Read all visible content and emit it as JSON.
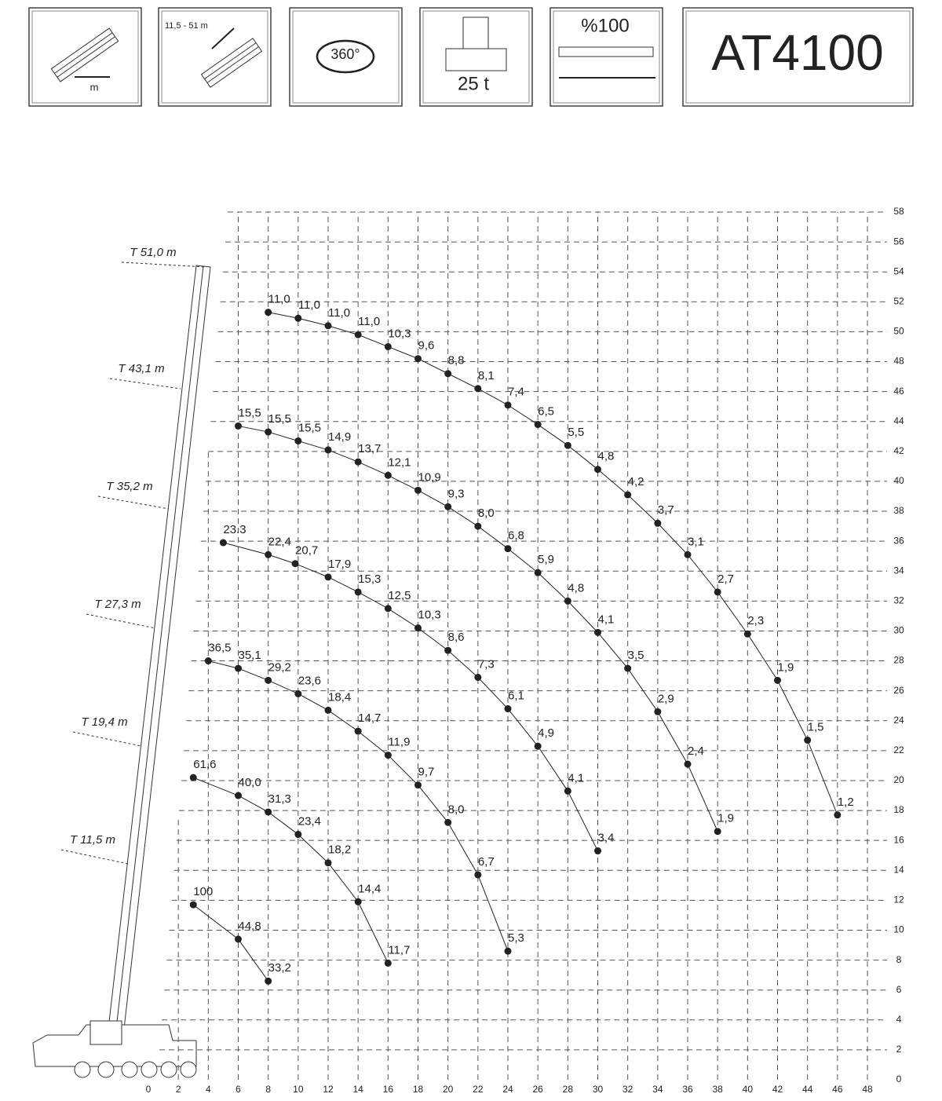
{
  "header": {
    "icons": [
      "m",
      "11,5 - 51 m",
      "360°",
      "25 t",
      "%100"
    ],
    "model": "AT4100"
  },
  "chart_data": {
    "type": "scatter",
    "xlim": [
      0,
      48
    ],
    "ylim": [
      0,
      58
    ],
    "xticks": [
      0,
      2,
      4,
      6,
      8,
      10,
      12,
      14,
      16,
      18,
      20,
      22,
      24,
      26,
      28,
      30,
      32,
      34,
      36,
      38,
      40,
      42,
      44,
      46,
      48
    ],
    "yticks": [
      0,
      2,
      4,
      6,
      8,
      10,
      12,
      14,
      16,
      18,
      20,
      22,
      24,
      26,
      28,
      30,
      32,
      34,
      36,
      38,
      40,
      42,
      44,
      46,
      48,
      50,
      52,
      54,
      56,
      58
    ],
    "grid": true,
    "color": "#222222",
    "series": [
      {
        "name": "T 51,0 m",
        "x": [
          8,
          10,
          12,
          14,
          16,
          18,
          20,
          22,
          24,
          26,
          28,
          30,
          32,
          34,
          36,
          38,
          40,
          42,
          44,
          46
        ],
        "values": [
          51.3,
          50.9,
          50.4,
          49.8,
          49.0,
          48.2,
          47.2,
          46.2,
          45.1,
          43.8,
          42.4,
          40.8,
          39.1,
          37.2,
          35.1,
          32.6,
          29.8,
          26.7,
          22.7,
          17.7
        ],
        "loads": [
          11.0,
          11.0,
          11.0,
          11.0,
          10.3,
          9.6,
          8.8,
          8.1,
          7.4,
          6.5,
          5.5,
          4.8,
          4.2,
          3.7,
          3.1,
          2.7,
          2.3,
          1.9,
          1.5,
          1.2
        ],
        "value_labels": [
          "11,0",
          "11,0",
          "11,0",
          "11,0",
          "10,3",
          "9,6",
          "8,8",
          "8,1",
          "7,4",
          "6,5",
          "5,5",
          "4,8",
          "4,2",
          "3,7",
          "3,1",
          "2,7",
          "2,3",
          "1,9",
          "1,5",
          "1,2"
        ]
      },
      {
        "name": "T 43,1 m",
        "x": [
          6,
          8,
          10,
          12,
          14,
          16,
          18,
          20,
          22,
          24,
          26,
          28,
          30,
          32,
          34,
          36,
          38
        ],
        "values": [
          43.7,
          43.3,
          42.7,
          42.1,
          41.3,
          40.4,
          39.4,
          38.3,
          37.0,
          35.5,
          33.9,
          32.0,
          29.9,
          27.5,
          24.6,
          21.1,
          16.6
        ],
        "loads": [
          15.5,
          15.5,
          15.5,
          14.9,
          13.7,
          12.1,
          10.9,
          9.3,
          8.0,
          6.8,
          5.9,
          4.8,
          4.1,
          3.5,
          2.9,
          2.4,
          1.9
        ],
        "value_labels": [
          "15,5",
          "15,5",
          "15,5",
          "14,9",
          "13,7",
          "12,1",
          "10,9",
          "9,3",
          "8,0",
          "6,8",
          "5,9",
          "4,8",
          "4,1",
          "3,5",
          "2,9",
          "2,4",
          "1,9"
        ]
      },
      {
        "name": "T 35,2 m",
        "x": [
          5,
          8,
          9.8,
          12,
          14,
          16,
          18,
          20,
          22,
          24,
          26,
          28,
          30
        ],
        "values": [
          35.9,
          35.1,
          34.5,
          33.6,
          32.6,
          31.5,
          30.2,
          28.7,
          26.9,
          24.8,
          22.3,
          19.3,
          15.3
        ],
        "loads": [
          23.3,
          22.4,
          20.7,
          17.9,
          15.3,
          12.5,
          10.3,
          8.6,
          7.3,
          6.1,
          4.9,
          4.1,
          3.4
        ],
        "value_labels": [
          "23.3",
          "22,4",
          "20,7",
          "17,9",
          "15,3",
          "12,5",
          "10,3",
          "8,6",
          "7,3",
          "6,1",
          "4,9",
          "4,1",
          "3,4"
        ]
      },
      {
        "name": "T 27,3 m",
        "x": [
          4,
          6,
          8,
          10,
          12,
          14,
          16,
          18,
          20,
          22,
          24
        ],
        "values": [
          28.0,
          27.5,
          26.7,
          25.8,
          24.7,
          23.3,
          21.7,
          19.7,
          17.2,
          13.7,
          8.6
        ],
        "loads": [
          36.5,
          35.1,
          29.2,
          23.6,
          18.4,
          14.7,
          11.9,
          9.7,
          8.0,
          6.7,
          5.3
        ],
        "value_labels": [
          "36,5",
          "35,1",
          "29,2",
          "23,6",
          "18,4",
          "14,7",
          "11,9",
          "9,7",
          "8,0",
          "6,7",
          "5,3"
        ]
      },
      {
        "name": "T 19,4 m",
        "x": [
          3,
          6,
          8,
          10,
          12,
          14,
          16
        ],
        "values": [
          20.2,
          19.0,
          17.9,
          16.4,
          14.5,
          11.9,
          7.8
        ],
        "loads": [
          61.6,
          40.0,
          31.3,
          23.4,
          18.2,
          14.4,
          11.7
        ],
        "value_labels": [
          "61,6",
          "40,0",
          "31,3",
          "23,4",
          "18,2",
          "14,4",
          "11,7"
        ]
      },
      {
        "name": "T 11,5 m",
        "x": [
          3,
          6,
          8
        ],
        "values": [
          11.7,
          9.4,
          6.6
        ],
        "loads": [
          100,
          44.8,
          33.2
        ],
        "value_labels": [
          "100",
          "44,8",
          "33,2"
        ]
      }
    ]
  }
}
